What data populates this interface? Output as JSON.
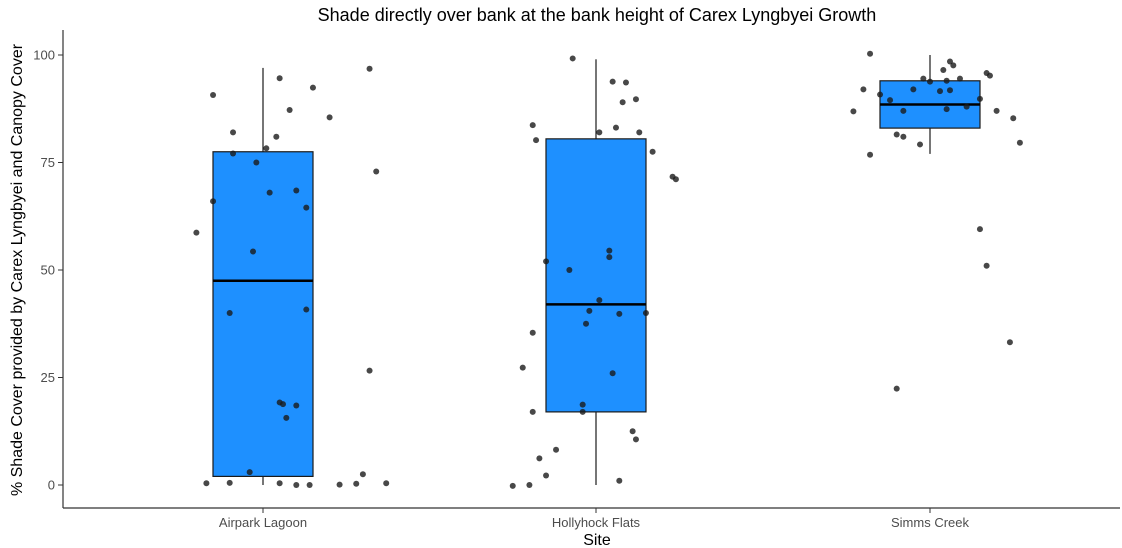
{
  "chart_data": {
    "type": "boxplot",
    "title": "Shade directly over bank at the bank height of Carex Lyngbyei Growth",
    "xlabel": "Site",
    "ylabel": "% Shade Cover provided by Carex Lyngbyei and Canopy Cover",
    "categories": [
      "Airpark Lagoon",
      "Hollyhock Flats",
      "Simms Creek"
    ],
    "ylim": [
      -5,
      105
    ],
    "yticks": [
      0,
      25,
      50,
      75,
      100
    ],
    "grid": false,
    "box_color": "#1E90FF",
    "point_color": "#1a1a1a",
    "boxes": [
      {
        "min": 0,
        "q1": 2,
        "median": 47.5,
        "q3": 77.5,
        "max": 97
      },
      {
        "min": 0,
        "q1": 17,
        "median": 42,
        "q3": 80.5,
        "max": 99
      },
      {
        "min": 77,
        "q1": 83,
        "median": 88.5,
        "q3": 94,
        "max": 100
      }
    ],
    "points": [
      [
        {
          "dx": -0.15,
          "y": 90.7
        },
        {
          "dx": 0.05,
          "y": 94.6
        },
        {
          "dx": 0.15,
          "y": 92.4
        },
        {
          "dx": 0.32,
          "y": 96.8
        },
        {
          "dx": 0.08,
          "y": 87.2
        },
        {
          "dx": 0.2,
          "y": 85.5
        },
        {
          "dx": -0.09,
          "y": 82.0
        },
        {
          "dx": 0.04,
          "y": 81.0
        },
        {
          "dx": 0.01,
          "y": 78.3
        },
        {
          "dx": -0.09,
          "y": 77.1
        },
        {
          "dx": -0.02,
          "y": 75.0
        },
        {
          "dx": 0.34,
          "y": 72.9
        },
        {
          "dx": 0.02,
          "y": 68.0
        },
        {
          "dx": 0.1,
          "y": 68.5
        },
        {
          "dx": -0.15,
          "y": 66.0
        },
        {
          "dx": 0.13,
          "y": 64.5
        },
        {
          "dx": -0.2,
          "y": 58.7
        },
        {
          "dx": -0.03,
          "y": 54.3
        },
        {
          "dx": 0.13,
          "y": 40.8
        },
        {
          "dx": -0.1,
          "y": 40.0
        },
        {
          "dx": 0.32,
          "y": 26.6
        },
        {
          "dx": 0.05,
          "y": 19.2
        },
        {
          "dx": 0.06,
          "y": 18.8
        },
        {
          "dx": 0.1,
          "y": 18.5
        },
        {
          "dx": 0.07,
          "y": 15.6
        },
        {
          "dx": -0.04,
          "y": 3.0
        },
        {
          "dx": 0.3,
          "y": 2.5
        },
        {
          "dx": -0.1,
          "y": 0.5
        },
        {
          "dx": -0.17,
          "y": 0.4
        },
        {
          "dx": 0.05,
          "y": 0.4
        },
        {
          "dx": 0.1,
          "y": 0.0
        },
        {
          "dx": 0.14,
          "y": 0.0
        },
        {
          "dx": 0.23,
          "y": 0.1
        },
        {
          "dx": 0.28,
          "y": 0.3
        },
        {
          "dx": 0.37,
          "y": 0.4
        }
      ],
      [
        {
          "dx": -0.07,
          "y": 99.2
        },
        {
          "dx": 0.05,
          "y": 93.8
        },
        {
          "dx": 0.09,
          "y": 93.6
        },
        {
          "dx": 0.12,
          "y": 89.7
        },
        {
          "dx": 0.08,
          "y": 89.0
        },
        {
          "dx": -0.19,
          "y": 83.7
        },
        {
          "dx": -0.18,
          "y": 80.2
        },
        {
          "dx": 0.01,
          "y": 82.0
        },
        {
          "dx": 0.06,
          "y": 83.1
        },
        {
          "dx": 0.13,
          "y": 82.0
        },
        {
          "dx": 0.17,
          "y": 77.5
        },
        {
          "dx": 0.23,
          "y": 71.7
        },
        {
          "dx": 0.24,
          "y": 71.1
        },
        {
          "dx": -0.15,
          "y": 52.0
        },
        {
          "dx": -0.08,
          "y": 50.0
        },
        {
          "dx": 0.04,
          "y": 54.5
        },
        {
          "dx": 0.04,
          "y": 53.0
        },
        {
          "dx": -0.02,
          "y": 40.5
        },
        {
          "dx": 0.01,
          "y": 43.0
        },
        {
          "dx": 0.07,
          "y": 39.8
        },
        {
          "dx": 0.15,
          "y": 40.0
        },
        {
          "dx": -0.03,
          "y": 37.5
        },
        {
          "dx": -0.19,
          "y": 35.4
        },
        {
          "dx": -0.22,
          "y": 27.3
        },
        {
          "dx": 0.05,
          "y": 26.0
        },
        {
          "dx": -0.04,
          "y": 18.7
        },
        {
          "dx": 0.11,
          "y": 12.5
        },
        {
          "dx": 0.12,
          "y": 10.6
        },
        {
          "dx": -0.19,
          "y": 17.0
        },
        {
          "dx": -0.04,
          "y": 17.0
        },
        {
          "dx": -0.12,
          "y": 8.2
        },
        {
          "dx": -0.17,
          "y": 6.2
        },
        {
          "dx": -0.15,
          "y": 2.2
        },
        {
          "dx": 0.07,
          "y": 1.0
        },
        {
          "dx": -0.2,
          "y": 0.0
        },
        {
          "dx": -0.25,
          "y": -0.2
        }
      ],
      [
        {
          "dx": -0.18,
          "y": 100.3
        },
        {
          "dx": 0.06,
          "y": 98.5
        },
        {
          "dx": 0.07,
          "y": 97.6
        },
        {
          "dx": 0.04,
          "y": 96.5
        },
        {
          "dx": 0.17,
          "y": 95.8
        },
        {
          "dx": 0.18,
          "y": 95.2
        },
        {
          "dx": 0.09,
          "y": 94.5
        },
        {
          "dx": 0.05,
          "y": 94.0
        },
        {
          "dx": -0.02,
          "y": 94.5
        },
        {
          "dx": 0.0,
          "y": 93.8
        },
        {
          "dx": -0.05,
          "y": 92.0
        },
        {
          "dx": -0.2,
          "y": 92.0
        },
        {
          "dx": 0.06,
          "y": 91.8
        },
        {
          "dx": 0.03,
          "y": 91.6
        },
        {
          "dx": -0.15,
          "y": 90.8
        },
        {
          "dx": -0.12,
          "y": 89.5
        },
        {
          "dx": 0.15,
          "y": 89.8
        },
        {
          "dx": 0.11,
          "y": 88.0
        },
        {
          "dx": 0.05,
          "y": 87.4
        },
        {
          "dx": -0.08,
          "y": 87.0
        },
        {
          "dx": -0.23,
          "y": 86.9
        },
        {
          "dx": 0.2,
          "y": 87.0
        },
        {
          "dx": 0.25,
          "y": 85.3
        },
        {
          "dx": -0.1,
          "y": 81.5
        },
        {
          "dx": -0.08,
          "y": 81.0
        },
        {
          "dx": 0.27,
          "y": 79.6
        },
        {
          "dx": -0.03,
          "y": 79.2
        },
        {
          "dx": -0.18,
          "y": 76.8
        },
        {
          "dx": 0.15,
          "y": 59.5
        },
        {
          "dx": 0.17,
          "y": 51.0
        },
        {
          "dx": 0.24,
          "y": 33.2
        },
        {
          "dx": -0.1,
          "y": 22.4
        }
      ]
    ]
  }
}
